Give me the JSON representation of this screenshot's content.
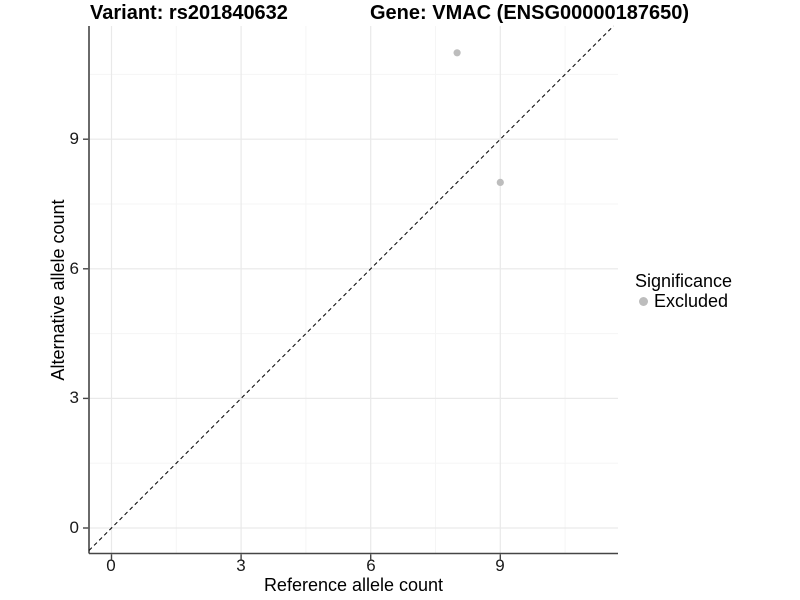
{
  "titles": {
    "variant": "Variant: rs201840632",
    "gene": "Gene: VMAC (ENSG00000187650)"
  },
  "axes": {
    "x": {
      "label": "Reference allele count",
      "tick_labels": [
        "0",
        "3",
        "6",
        "9"
      ]
    },
    "y": {
      "label": "Alternative allele count",
      "tick_labels": [
        "0",
        "3",
        "6",
        "9"
      ]
    }
  },
  "legend": {
    "title": "Significance",
    "items": [
      {
        "label": "Excluded",
        "color": "#bdbdbd"
      }
    ]
  },
  "colors": {
    "point": "#bdbdbd",
    "grid_major": "#e9e9e9",
    "grid_minor": "#f5f5f5",
    "axis_line": "#454545",
    "reference_line": "#111111",
    "background": "#ffffff"
  },
  "chart_data": {
    "type": "scatter",
    "title": "Variant: rs201840632 — Gene: VMAC (ENSG00000187650)",
    "xlabel": "Reference allele count",
    "ylabel": "Alternative allele count",
    "x_ticks": [
      0,
      3,
      6,
      9
    ],
    "y_ticks": [
      0,
      3,
      6,
      9
    ],
    "xlim": [
      -0.52,
      11.72
    ],
    "ylim": [
      -0.59,
      11.62
    ],
    "grid": true,
    "legend_position": "right",
    "series": [
      {
        "name": "Excluded",
        "color": "#bdbdbd",
        "points": [
          {
            "x": 8,
            "y": 11
          },
          {
            "x": 9,
            "y": 8
          }
        ]
      }
    ],
    "reference_line": {
      "kind": "identity",
      "equation": "y = x",
      "style": "dashed",
      "color": "#111111"
    }
  }
}
